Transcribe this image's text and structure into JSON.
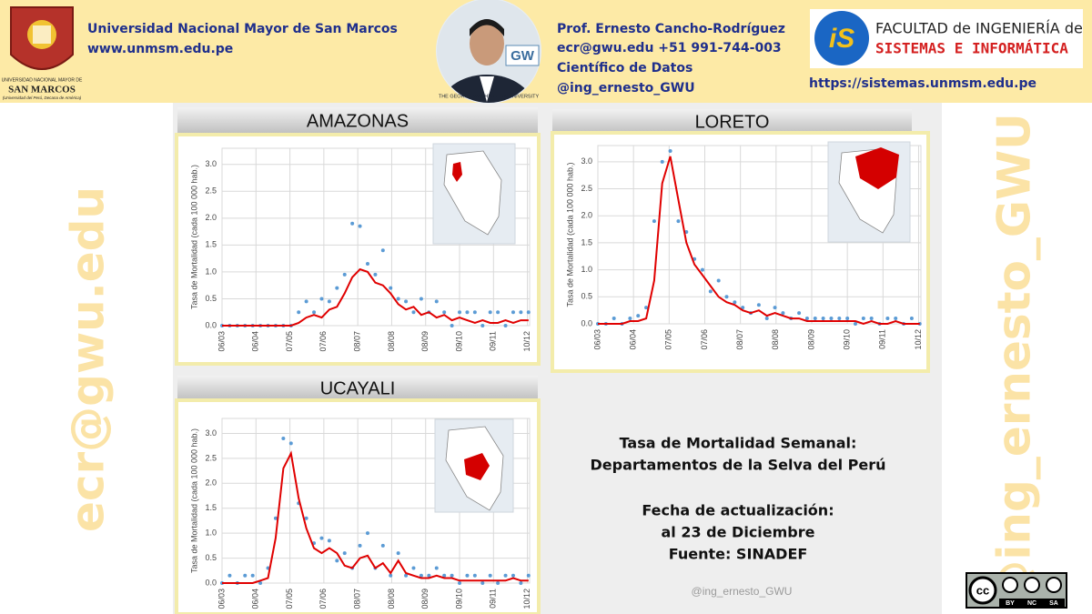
{
  "header": {
    "university": "Universidad Nacional Mayor de San Marcos",
    "university_url": "www.unmsm.edu.pe",
    "crest_lines": [
      "UNIVERSIDAD NACIONAL MAYOR DE",
      "SAN MARCOS",
      "(Universidad del Perú, Decana de América)"
    ],
    "photo_caption": "THE GEORGE WASHINGTON UNIVERSITY",
    "photo_badge": "GW",
    "author": "Prof. Ernesto Cancho-Rodríguez",
    "contact": "ecr@gwu.edu +51 991-744-003",
    "role": "Científico de Datos",
    "handle": "@ing_ernesto_GWU",
    "faculty_line1": "FACULTAD de INGENIERÍA de",
    "faculty_line2": "SISTEMAS E INFORMÁTICA",
    "faculty_logo": "iS",
    "faculty_url": "https://sistemas.unmsm.edu.pe"
  },
  "watermarks": [
    "ecr@gwu.edu",
    "@ing_ernesto_GWU"
  ],
  "info": {
    "lines": [
      "Tasa de Mortalidad Semanal:",
      "Departamentos de la Selva del Perú",
      "Fecha de actualización:",
      "al 23 de Diciembre",
      "Fuente: SINADEF"
    ]
  },
  "footer_handle": "@ing_ernesto_GWU",
  "license": [
    "cc",
    "BY",
    "NC",
    "SA"
  ],
  "chart_data": [
    {
      "type": "scatter-line",
      "title": "AMAZONAS",
      "ylabel": "Tasa de Mortalidad (cada 100 000 hab.)",
      "x": [
        "06/03",
        "13/03",
        "20/03",
        "27/03",
        "03/04",
        "10/04",
        "17/04",
        "24/04",
        "01/05",
        "08/05",
        "15/05",
        "22/05",
        "29/05",
        "05/06",
        "12/06",
        "19/06",
        "26/06",
        "03/07",
        "10/07",
        "17/07",
        "24/07",
        "31/07",
        "07/08",
        "14/08",
        "21/08",
        "28/08",
        "04/09",
        "11/09",
        "18/09",
        "25/09",
        "02/10",
        "09/10",
        "16/10",
        "23/10",
        "30/10",
        "06/11",
        "13/11",
        "20/11",
        "27/11",
        "04/12",
        "11/12"
      ],
      "xlim": [
        "06/03",
        "12/12"
      ],
      "xticks": [
        "06/03",
        "06/04",
        "07/05",
        "07/06",
        "08/07",
        "08/08",
        "08/09",
        "09/10",
        "09/11",
        "10/12"
      ],
      "ylim": [
        0,
        3.3
      ],
      "yticks": [
        {
          "value": 0,
          "label": "0.0"
        },
        {
          "value": 0.5,
          "label": "0.5"
        },
        {
          "value": 1,
          "label": "1.0"
        },
        {
          "value": 1.5,
          "label": "1.5"
        },
        {
          "value": 2,
          "label": "2.0"
        },
        {
          "value": 2.5,
          "label": "2.5"
        },
        {
          "value": 3,
          "label": "3.0"
        }
      ],
      "grid": true,
      "series": [
        {
          "type": "scatter",
          "color": "#5b9bd5",
          "values": [
            0,
            0,
            0,
            0,
            0,
            0,
            0,
            0,
            0,
            0,
            0.25,
            0.45,
            0.25,
            0.5,
            0.45,
            0.7,
            0.95,
            1.9,
            1.85,
            1.15,
            0.95,
            1.4,
            0.7,
            0.5,
            0.45,
            0.25,
            0.5,
            0.25,
            0.45,
            0.25,
            0,
            0.25,
            0.25,
            0.25,
            0,
            0.25,
            0.25,
            0,
            0.25,
            0.25,
            0.25
          ]
        },
        {
          "type": "line",
          "color": "#e00000",
          "values": [
            0,
            0,
            0,
            0,
            0,
            0,
            0,
            0,
            0,
            0,
            0.05,
            0.15,
            0.2,
            0.15,
            0.3,
            0.35,
            0.6,
            0.9,
            1.05,
            1.0,
            0.8,
            0.75,
            0.6,
            0.4,
            0.3,
            0.35,
            0.2,
            0.25,
            0.15,
            0.2,
            0.1,
            0.15,
            0.1,
            0.05,
            0.1,
            0.05,
            0.05,
            0.1,
            0.05,
            0.1,
            0.1
          ]
        }
      ]
    },
    {
      "type": "scatter-line",
      "title": "LORETO",
      "ylabel": "Tasa de Mortalidad (cada 100 000 hab.)",
      "x": [
        "06/03",
        "13/03",
        "20/03",
        "27/03",
        "03/04",
        "10/04",
        "17/04",
        "24/04",
        "01/05",
        "08/05",
        "15/05",
        "22/05",
        "29/05",
        "05/06",
        "12/06",
        "19/06",
        "26/06",
        "03/07",
        "10/07",
        "17/07",
        "24/07",
        "31/07",
        "07/08",
        "14/08",
        "21/08",
        "28/08",
        "04/09",
        "11/09",
        "18/09",
        "25/09",
        "02/10",
        "09/10",
        "16/10",
        "23/10",
        "30/10",
        "06/11",
        "13/11",
        "20/11",
        "27/11",
        "04/12",
        "11/12"
      ],
      "xlim": [
        "06/03",
        "12/12"
      ],
      "xticks": [
        "06/03",
        "06/04",
        "07/05",
        "07/06",
        "08/07",
        "08/08",
        "08/09",
        "09/10",
        "09/11",
        "10/12"
      ],
      "ylim": [
        0,
        3.3
      ],
      "yticks": [
        {
          "value": 0,
          "label": "0.0"
        },
        {
          "value": 0.5,
          "label": "0.5"
        },
        {
          "value": 1,
          "label": "1.0"
        },
        {
          "value": 1.5,
          "label": "1.5"
        },
        {
          "value": 2,
          "label": "2.0"
        },
        {
          "value": 2.5,
          "label": "2.5"
        },
        {
          "value": 3,
          "label": "3.0"
        }
      ],
      "grid": true,
      "series": [
        {
          "type": "scatter",
          "color": "#5b9bd5",
          "values": [
            0,
            0,
            0.1,
            0,
            0.1,
            0.15,
            0.3,
            1.9,
            3.0,
            3.2,
            1.9,
            1.7,
            1.2,
            1.0,
            0.6,
            0.8,
            0.5,
            0.4,
            0.3,
            0.2,
            0.35,
            0.1,
            0.3,
            0.2,
            0.1,
            0.2,
            0.1,
            0.1,
            0.1,
            0.1,
            0.1,
            0.1,
            0,
            0.1,
            0.1,
            0,
            0.1,
            0.1,
            0,
            0.1,
            0
          ]
        },
        {
          "type": "line",
          "color": "#e00000",
          "values": [
            0,
            0,
            0,
            0,
            0.05,
            0.05,
            0.1,
            0.8,
            2.6,
            3.1,
            2.3,
            1.5,
            1.1,
            0.9,
            0.7,
            0.5,
            0.4,
            0.35,
            0.25,
            0.2,
            0.25,
            0.15,
            0.2,
            0.15,
            0.1,
            0.1,
            0.05,
            0.05,
            0.05,
            0.05,
            0.05,
            0.05,
            0.05,
            0,
            0.05,
            0,
            0,
            0.05,
            0,
            0,
            0
          ]
        }
      ]
    },
    {
      "type": "scatter-line",
      "title": "UCAYALI",
      "ylabel": "Tasa de Mortalidad (cada 100 000 hab.)",
      "x": [
        "06/03",
        "13/03",
        "20/03",
        "27/03",
        "03/04",
        "10/04",
        "17/04",
        "24/04",
        "01/05",
        "08/05",
        "15/05",
        "22/05",
        "29/05",
        "05/06",
        "12/06",
        "19/06",
        "26/06",
        "03/07",
        "10/07",
        "17/07",
        "24/07",
        "31/07",
        "07/08",
        "14/08",
        "21/08",
        "28/08",
        "04/09",
        "11/09",
        "18/09",
        "25/09",
        "02/10",
        "09/10",
        "16/10",
        "23/10",
        "30/10",
        "06/11",
        "13/11",
        "20/11",
        "27/11",
        "04/12",
        "11/12"
      ],
      "xlim": [
        "06/03",
        "12/12"
      ],
      "xticks": [
        "06/03",
        "06/04",
        "07/05",
        "07/06",
        "08/07",
        "08/08",
        "08/09",
        "09/10",
        "09/11",
        "10/12"
      ],
      "ylim": [
        0,
        3.3
      ],
      "yticks": [
        {
          "value": 0,
          "label": "0.0"
        },
        {
          "value": 0.5,
          "label": "0.5"
        },
        {
          "value": 1,
          "label": "1.0"
        },
        {
          "value": 1.5,
          "label": "1.5"
        },
        {
          "value": 2,
          "label": "2.0"
        },
        {
          "value": 2.5,
          "label": "2.5"
        },
        {
          "value": 3,
          "label": "3.0"
        }
      ],
      "grid": true,
      "series": [
        {
          "type": "scatter",
          "color": "#5b9bd5",
          "values": [
            0,
            0.15,
            0,
            0.15,
            0.15,
            0,
            0.3,
            1.3,
            2.9,
            2.8,
            1.6,
            1.3,
            0.8,
            0.9,
            0.85,
            0.45,
            0.6,
            0.3,
            0.75,
            1.0,
            0.3,
            0.75,
            0.15,
            0.6,
            0.15,
            0.3,
            0.15,
            0.15,
            0.3,
            0.15,
            0.15,
            0,
            0.15,
            0.15,
            0,
            0.15,
            0,
            0.15,
            0.15,
            0,
            0.15
          ]
        },
        {
          "type": "line",
          "color": "#e00000",
          "values": [
            0,
            0,
            0,
            0,
            0,
            0.05,
            0.1,
            0.9,
            2.3,
            2.6,
            1.7,
            1.1,
            0.7,
            0.6,
            0.7,
            0.6,
            0.35,
            0.3,
            0.5,
            0.55,
            0.3,
            0.4,
            0.2,
            0.45,
            0.2,
            0.15,
            0.1,
            0.1,
            0.15,
            0.1,
            0.1,
            0.05,
            0.05,
            0.05,
            0.05,
            0.05,
            0.05,
            0.05,
            0.1,
            0.05,
            0.05
          ]
        }
      ]
    }
  ]
}
